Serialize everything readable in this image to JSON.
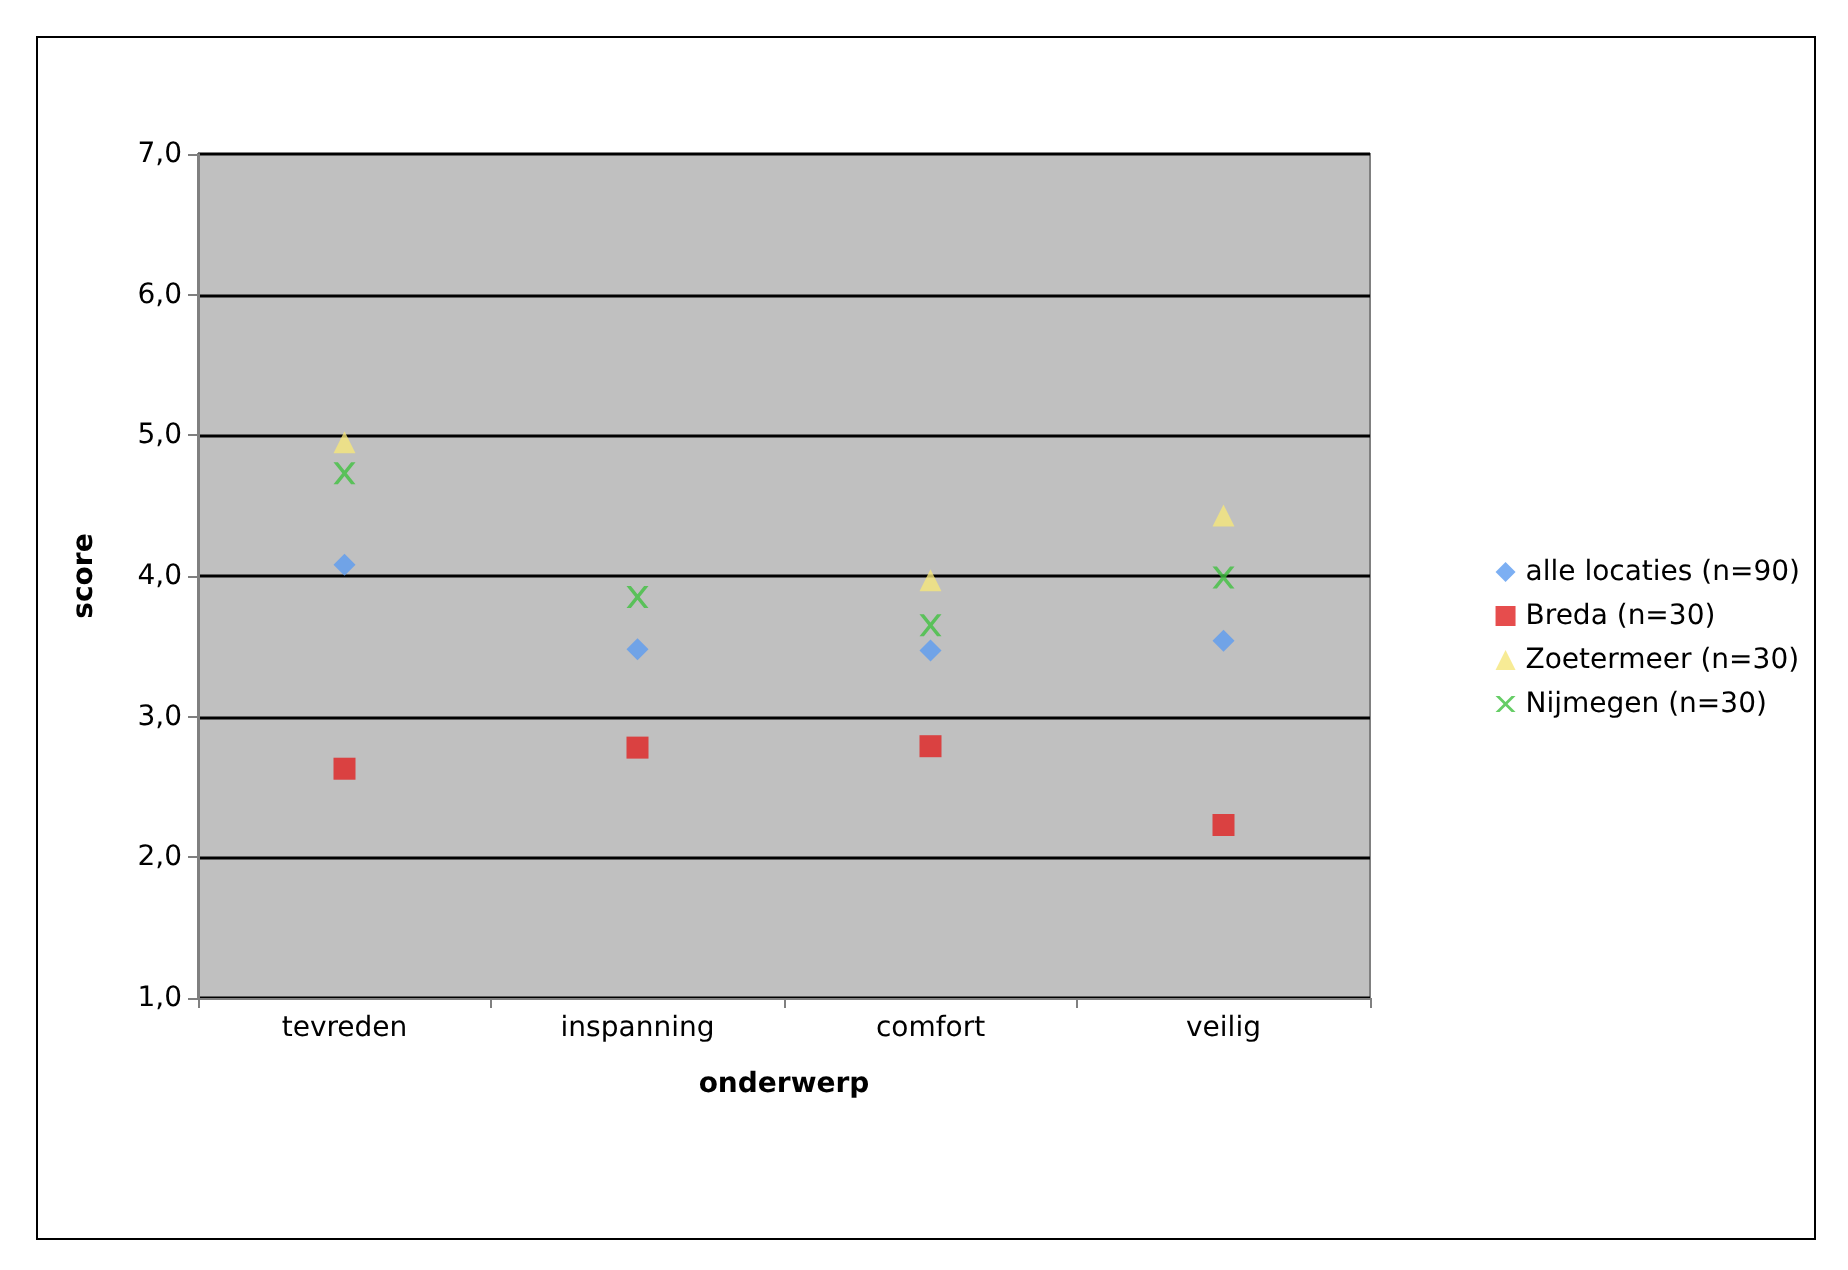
{
  "chart_data": {
    "type": "scatter",
    "xlabel": "onderwerp",
    "ylabel": "score",
    "categories": [
      "tevreden",
      "inspanning",
      "comfort",
      "veilig"
    ],
    "series": [
      {
        "name": "alle locaties (n=90)",
        "color": "#5b9bf0",
        "marker": "diamond",
        "values": [
          4.08,
          3.48,
          3.47,
          3.54
        ]
      },
      {
        "name": "Breda (n=30)",
        "color": "#e02020",
        "marker": "square",
        "values": [
          2.63,
          2.78,
          2.79,
          2.23
        ]
      },
      {
        "name": "Zoetermeer (n=30)",
        "color": "#f5e67a",
        "marker": "triangle",
        "values": [
          4.95,
          null,
          3.97,
          4.43
        ]
      },
      {
        "name": "Nijmegen (n=30)",
        "color": "#40c040",
        "marker": "cross",
        "values": [
          4.73,
          3.85,
          3.65,
          3.99
        ]
      }
    ],
    "ylim": [
      1,
      7
    ],
    "yticks": [
      {
        "value": 1,
        "label": "1,0"
      },
      {
        "value": 2,
        "label": "2,0"
      },
      {
        "value": 3,
        "label": "3,0"
      },
      {
        "value": 4,
        "label": "4,0"
      },
      {
        "value": 5,
        "label": "5,0"
      },
      {
        "value": 6,
        "label": "6,0"
      },
      {
        "value": 7,
        "label": "7,0"
      }
    ],
    "grid": "y",
    "legend": "right"
  }
}
